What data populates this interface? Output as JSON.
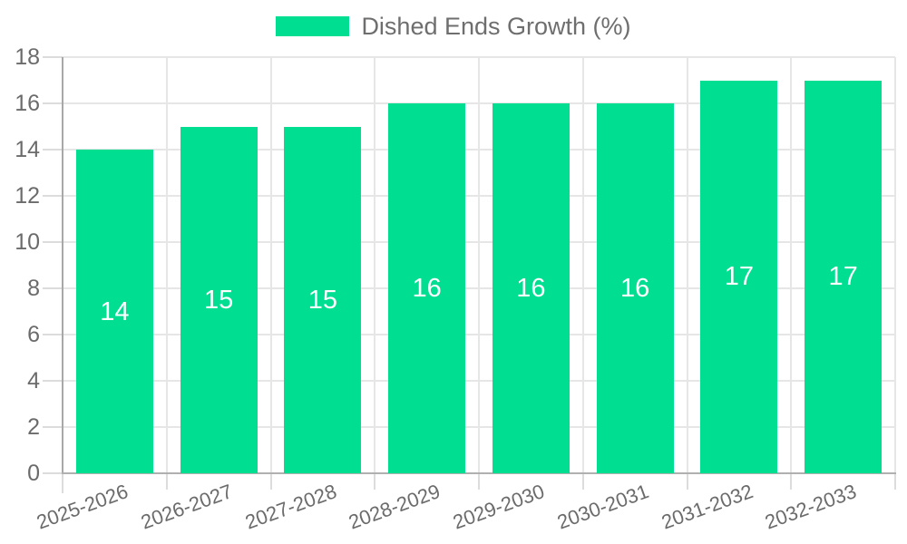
{
  "chart_data": {
    "type": "bar",
    "title": "Dished Ends Growth (%)",
    "legend_position": "top",
    "categories": [
      "2025-2026",
      "2026-2027",
      "2027-2028",
      "2028-2029",
      "2029-2030",
      "2030-2031",
      "2031-2032",
      "2032-2033"
    ],
    "series": [
      {
        "name": "Dished Ends Growth (%)",
        "values": [
          14,
          15,
          15,
          16,
          16,
          16,
          17,
          17
        ]
      }
    ],
    "data_labels": [
      "14",
      "15",
      "15",
      "16",
      "16",
      "16",
      "17",
      "17"
    ],
    "xlabel": "",
    "ylabel": "",
    "ylim": [
      0,
      18
    ],
    "ytick_step": 2,
    "yticks": [
      0,
      2,
      4,
      6,
      8,
      10,
      12,
      14,
      16,
      18
    ],
    "grid": true,
    "x_label_rotation_deg": -20,
    "colors": {
      "bar": "#00DE92",
      "bar_value_text": "#ffffff",
      "axis_text": "#6b6b6b",
      "legend_text": "#6e6e6e",
      "gridline": "#e6e6e6",
      "tick": "#dcdcdc",
      "axis_line": "#b0b0b0",
      "y_axis_line": "#a8a8a8",
      "background": "#ffffff"
    }
  }
}
